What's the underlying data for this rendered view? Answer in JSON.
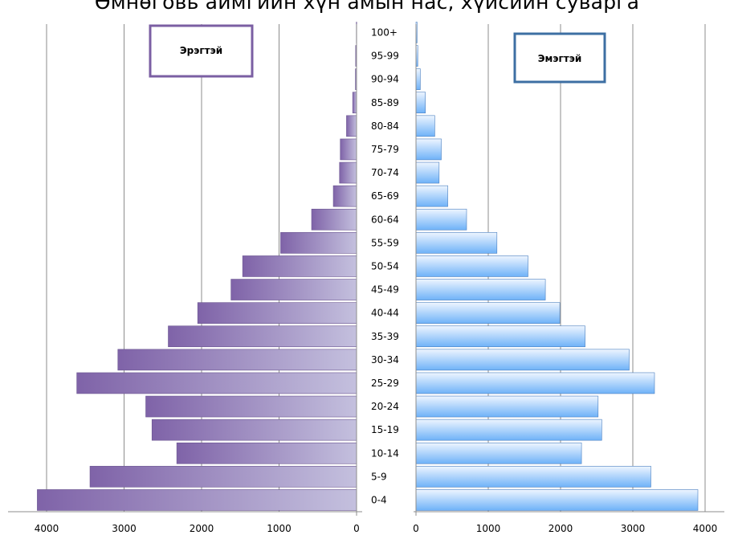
{
  "chart_data": {
    "type": "bar",
    "title": "Өмнөговь аймгийн хүн амын нас, хүйсийн суварга",
    "categories": [
      "0-4",
      "5-9",
      "10-14",
      "15-19",
      "20-24",
      "25-29",
      "30-34",
      "35-39",
      "40-44",
      "45-49",
      "50-54",
      "55-59",
      "60-64",
      "65-69",
      "70-74",
      "75-79",
      "80-84",
      "85-89",
      "90-94",
      "95-99",
      "100+"
    ],
    "series": [
      {
        "name": "Эрэгтэй",
        "color": "#8064a2",
        "values": [
          4120,
          3440,
          2320,
          2640,
          2720,
          3610,
          3080,
          2430,
          2050,
          1620,
          1470,
          980,
          580,
          300,
          220,
          210,
          130,
          50,
          15,
          12,
          3
        ]
      },
      {
        "name": "Эмэгтэй",
        "color": "#5fa8f5",
        "values": [
          3900,
          3250,
          2290,
          2570,
          2520,
          3300,
          2950,
          2340,
          1990,
          1790,
          1550,
          1120,
          700,
          440,
          320,
          350,
          260,
          130,
          60,
          25,
          15
        ]
      }
    ],
    "xticks_left": [
      "4000",
      "3000",
      "2000",
      "1000",
      "0"
    ],
    "xticks_right": [
      "0",
      "1000",
      "2000",
      "3000",
      "4000"
    ],
    "xlim": [
      0,
      4000
    ],
    "grid": true,
    "legend": [
      "Эрэгтэй",
      "Эмэгтэй"
    ]
  }
}
